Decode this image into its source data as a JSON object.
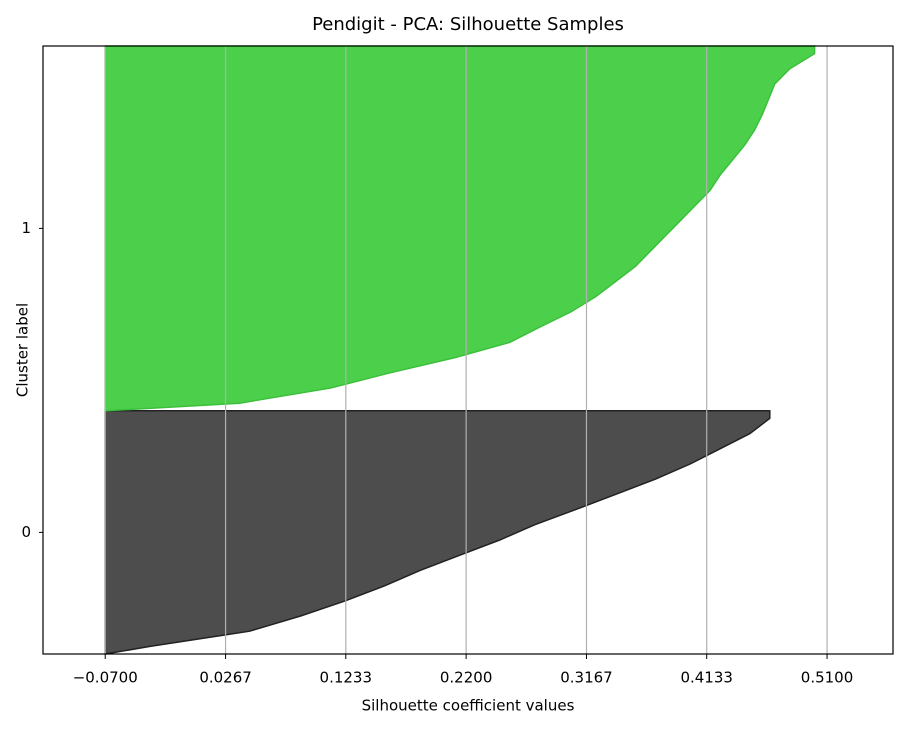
{
  "chart_data": {
    "type": "silhouette",
    "title": "Pendigit - PCA: Silhouette Samples",
    "x_label": "Silhouette coefficient values",
    "y_label": "Cluster label",
    "xlim": [
      -0.12,
      0.563
    ],
    "xticks": [
      {
        "value": -0.07,
        "label": "−0.0700"
      },
      {
        "value": 0.0267,
        "label": "0.0267"
      },
      {
        "value": 0.1233,
        "label": "0.1233"
      },
      {
        "value": 0.22,
        "label": "0.2200"
      },
      {
        "value": 0.3167,
        "label": "0.3167"
      },
      {
        "value": 0.4133,
        "label": "0.4133"
      },
      {
        "value": 0.51,
        "label": "0.5100"
      }
    ],
    "grid": true,
    "series": [
      {
        "name": "0",
        "color": "#4d4d4d",
        "edge_color": "#222222",
        "values": [
          -0.034,
          0.046,
          0.087,
          0.123,
          0.155,
          0.183,
          0.215,
          0.247,
          0.275,
          0.308,
          0.34,
          0.372,
          0.4,
          0.424,
          0.448,
          0.464
        ]
      },
      {
        "name": "1",
        "color": "#4cd04c",
        "edge_color": "#3cc03c",
        "values": [
          0.038,
          0.111,
          0.159,
          0.211,
          0.255,
          0.279,
          0.304,
          0.324,
          0.34,
          0.356,
          0.368,
          0.38,
          0.392,
          0.404,
          0.416,
          0.424,
          0.434,
          0.444,
          0.452,
          0.458,
          0.463,
          0.468,
          0.48,
          0.5
        ]
      }
    ]
  }
}
